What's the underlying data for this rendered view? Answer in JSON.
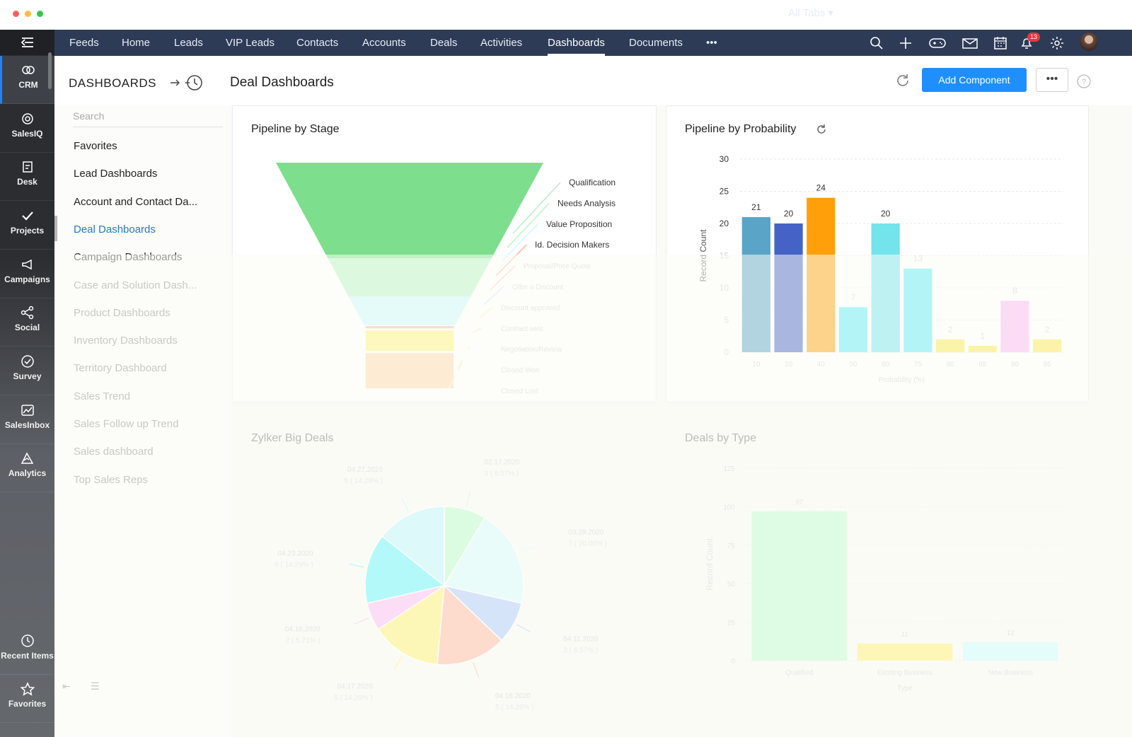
{
  "window": {
    "dots": [
      "#fc605b",
      "#fdbc40",
      "#34c84a"
    ]
  },
  "rail": {
    "menu_icon": "menu-collapse-icon",
    "items": [
      {
        "label": "CRM",
        "icon": "crm-icon"
      },
      {
        "label": "SalesIQ",
        "icon": "salesiq-icon"
      },
      {
        "label": "Desk",
        "icon": "desk-icon"
      },
      {
        "label": "Projects",
        "icon": "projects-icon"
      },
      {
        "label": "Campaigns",
        "icon": "campaigns-icon"
      },
      {
        "label": "Social",
        "icon": "social-icon"
      },
      {
        "label": "Survey",
        "icon": "survey-icon"
      },
      {
        "label": "SalesInbox",
        "icon": "salesinbox-icon"
      },
      {
        "label": "Analytics",
        "icon": "analytics-icon"
      },
      {
        "label": "Recent Items",
        "icon": "history-icon"
      },
      {
        "label": "Favorites",
        "icon": "star-icon"
      }
    ]
  },
  "nav": {
    "tabs": [
      "Feeds",
      "Home",
      "Leads",
      "VIP Leads",
      "Contacts",
      "Accounts",
      "Deals",
      "Activities",
      "Dashboards",
      "Documents",
      "•••"
    ],
    "active": "Dashboards",
    "all_tabs": "All Tabs ▾",
    "notification_count": "13",
    "bg": "#2e3b57"
  },
  "header": {
    "section_title": "DASHBOARDS",
    "page_title": "Deal Dashboards",
    "add_button": "Add Component",
    "more_button": "•••"
  },
  "sidebar": {
    "search_placeholder": "Search",
    "items": [
      "Favorites",
      "Lead Dashboards",
      "Account and Contact Da...",
      "Deal Dashboards",
      "Campaign Dashboards",
      "Case and Solution Dash...",
      "Product Dashboards",
      "Inventory Dashboards",
      "Territory Dashboard",
      "Sales Trend",
      "Sales Follow up Trend",
      "Sales dashboard",
      "Top Sales Reps"
    ],
    "active": "Deal Dashboards"
  },
  "chart_data": [
    {
      "title": "Pipeline by Stage",
      "type": "funnel",
      "stages": [
        {
          "label": "Qualification",
          "value": 60,
          "color": "#7ddf8e"
        },
        {
          "label": "Needs Analysis",
          "value": 24,
          "color": "#b7f7c4"
        },
        {
          "label": "Value Proposition",
          "value": 18,
          "color": "#c9fbff"
        },
        {
          "label": "Id. Decision Makers",
          "value": 1,
          "color": "#ffb3a1"
        },
        {
          "label": "Proposal/Price Quote",
          "value": 0,
          "color": "#ffc8c8"
        },
        {
          "label": "Offer a Discount",
          "value": 0,
          "color": "#cde7ff"
        },
        {
          "label": "Discount approved",
          "value": 0,
          "color": "#fff9b0"
        },
        {
          "label": "Contract sent",
          "value": 0,
          "color": "#ffe3c6"
        },
        {
          "label": "Negotiation/Review",
          "value": 6,
          "color": "#fff47a"
        },
        {
          "label": "Closed Won",
          "value": 10,
          "color": "#ffd8a8"
        },
        {
          "label": "Closed Lost",
          "value": 0,
          "color": "#fff2d0"
        }
      ]
    },
    {
      "title": "Pipeline by Probability",
      "type": "bar",
      "categories": [
        "10",
        "20",
        "40",
        "50",
        "60",
        "75",
        "80",
        "85",
        "90",
        "95"
      ],
      "values": [
        21,
        20,
        24,
        7,
        20,
        13,
        2,
        1,
        8,
        2
      ],
      "colors": [
        "#5aa4c8",
        "#4563c6",
        "#ff9f0a",
        "#5ceef5",
        "#73e4ec",
        "#5ceef5",
        "#fbe94a",
        "#fbe94a",
        "#fdb7f1",
        "#fbe94a"
      ],
      "xlabel": "Probability (%)",
      "ylabel": "Record Count",
      "yticks": [
        0,
        5,
        10,
        15,
        20,
        25,
        30
      ],
      "ylim": [
        0,
        30
      ]
    },
    {
      "title": "Zylker Big Deals",
      "type": "pie",
      "slices": [
        {
          "label": "02.17.2020",
          "sub": "3 ( 8.57% )",
          "value": 3,
          "color": "#b6fccb"
        },
        {
          "label": "03.19.2020",
          "sub": "7 ( 20.00% )",
          "value": 7,
          "color": "#d3fcff"
        },
        {
          "label": "04.11.2020",
          "sub": "3 ( 8.57% )",
          "value": 3,
          "color": "#a9c8ff"
        },
        {
          "label": "04.16.2020",
          "sub": "5 ( 14.29% )",
          "value": 5,
          "color": "#ffb59c"
        },
        {
          "label": "04.17.2020",
          "sub": "5 ( 14.29% )",
          "value": 5,
          "color": "#fef26a"
        },
        {
          "label": "04.18.2020",
          "sub": "2 ( 5.71% )",
          "value": 2,
          "color": "#fcb8f6"
        },
        {
          "label": "04.23.2020",
          "sub": "5 ( 14.29% )",
          "value": 5,
          "color": "#5ef6ff"
        },
        {
          "label": "04.27.2020",
          "sub": "5 ( 14.29% )",
          "value": 5,
          "color": "#b9f7ff"
        }
      ]
    },
    {
      "title": "Deals by Type",
      "type": "bar",
      "categories": [
        "Qualified",
        "Existing Business",
        "New Business"
      ],
      "values": [
        97,
        11,
        12
      ],
      "colors": [
        "#b9fdcd",
        "#fff06a",
        "#c7fdff"
      ],
      "xlabel": "Type",
      "ylabel": "Record Count",
      "yticks": [
        0,
        25,
        50,
        75,
        100,
        125
      ],
      "ylim": [
        0,
        125
      ]
    }
  ]
}
